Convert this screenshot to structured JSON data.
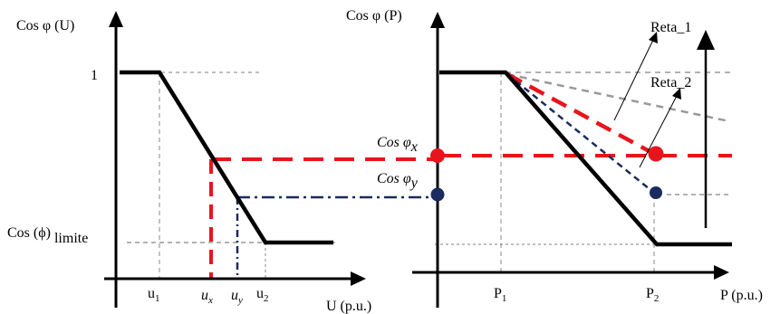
{
  "left_chart": {
    "ylabel": "Cos φ (U)",
    "xlabel": "U (p.u.)",
    "y_tick_one": "1",
    "limit_label_main": "Cos (ϕ)",
    "limit_label_sub": "limite",
    "ticks": {
      "u1": {
        "main": "u",
        "sub": "1"
      },
      "ux": {
        "main": "u",
        "sub": "x"
      },
      "uy": {
        "main": "u",
        "sub": "y"
      },
      "u2": {
        "main": "u",
        "sub": "2"
      }
    }
  },
  "right_chart": {
    "ylabel": "Cos φ (P)",
    "xlabel": "P (p.u.)",
    "ticks": {
      "p1": {
        "main": "P",
        "sub": "1"
      },
      "p2": {
        "main": "P",
        "sub": "2"
      }
    },
    "reta_1": "Reta_1",
    "reta_2": "Reta_2"
  },
  "annotations": {
    "cos_x": {
      "main": "Cos φ",
      "sub": "x"
    },
    "cos_y": {
      "main": "Cos φ",
      "sub": "y"
    }
  },
  "colors": {
    "black": "#000000",
    "red": "#e8141b",
    "navy": "#1a2c5e",
    "gray": "#888888"
  }
}
